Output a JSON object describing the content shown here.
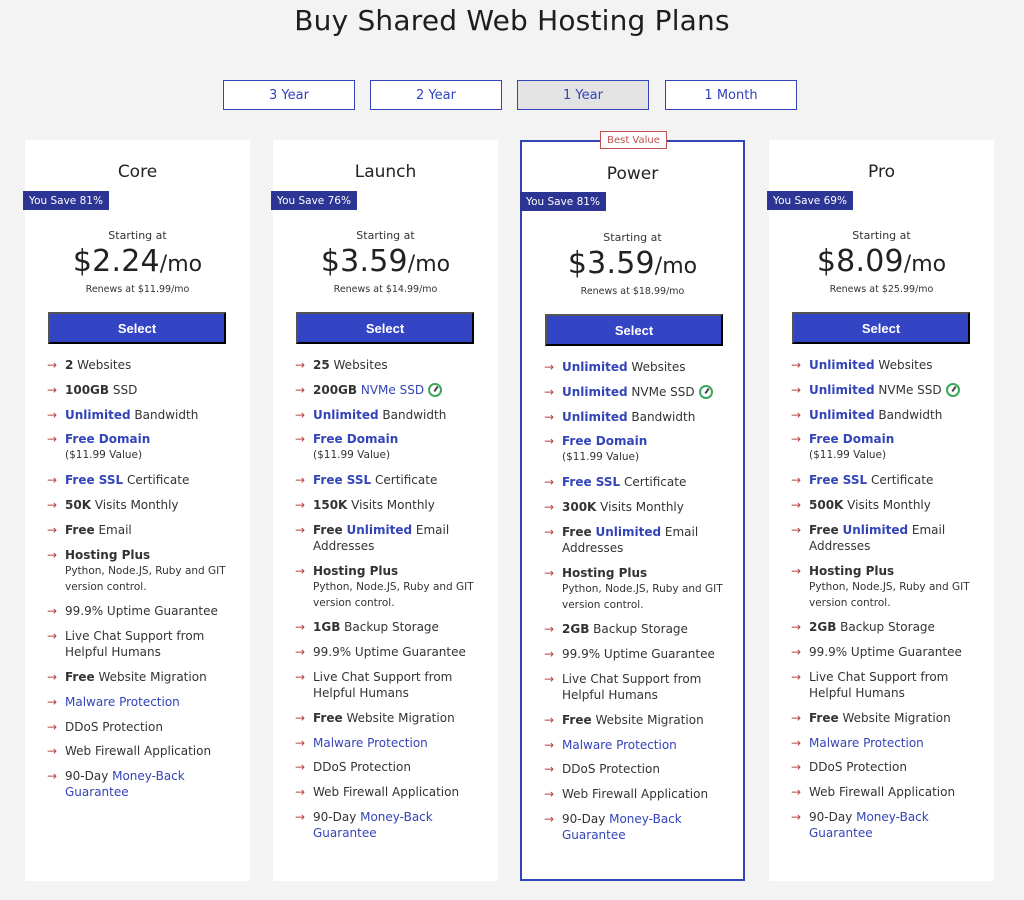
{
  "page": {
    "title": "Buy Shared Web Hosting Plans"
  },
  "terms": [
    "3 Year",
    "2 Year",
    "1 Year",
    "1 Month"
  ],
  "best_value_label": "Best Value",
  "plans": [
    {
      "name": "Core",
      "save": "You Save 81%",
      "starting": "Starting at",
      "price": "$2.24",
      "per": "/mo",
      "renews": "Renews at $11.99/mo",
      "select": "Select",
      "f": {
        "websites_b": "2",
        "websites_t": " Websites",
        "storage_b": "100GB",
        "storage_t": " SSD",
        "bandwidth_b": "Unlimited",
        "bandwidth_t": " Bandwidth",
        "domain_b": "Free Domain",
        "domain_s": "($11.99 Value)",
        "ssl_b": "Free SSL",
        "ssl_t": " Certificate",
        "visits_b": "50K",
        "visits_t": " Visits Monthly",
        "email_b": "Free",
        "email_t": " Email",
        "hosting_b": "Hosting Plus",
        "hosting_s": "Python, Node.JS, Ruby and GIT version control.",
        "uptime": "99.9% Uptime Guarantee",
        "chat": "Live Chat Support from Helpful Humans",
        "migration_b": "Free",
        "migration_t": " Website Migration",
        "malware": "Malware Protection",
        "ddos": "DDoS Protection",
        "firewall": "Web Firewall Application",
        "money_t": "90-Day ",
        "money_l": "Money-Back Guarantee"
      }
    },
    {
      "name": "Launch",
      "save": "You Save 76%",
      "starting": "Starting at",
      "price": "$3.59",
      "per": "/mo",
      "renews": "Renews at $14.99/mo",
      "select": "Select",
      "f": {
        "websites_b": "25",
        "websites_t": " Websites",
        "storage_b": "200GB",
        "storage_t": " NVMe SSD",
        "bandwidth_b": "Unlimited",
        "bandwidth_t": " Bandwidth",
        "domain_b": "Free Domain",
        "domain_s": "($11.99 Value)",
        "ssl_b": "Free SSL",
        "ssl_t": " Certificate",
        "visits_b": "150K",
        "visits_t": " Visits Monthly",
        "email_b": "Free",
        "email_u": "Unlimited",
        "email_t": " Email Addresses",
        "hosting_b": "Hosting Plus",
        "hosting_s": "Python, Node.JS, Ruby and GIT version control.",
        "backup_b": "1GB",
        "backup_t": " Backup Storage",
        "uptime": "99.9% Uptime Guarantee",
        "chat": "Live Chat Support from Helpful Humans",
        "migration_b": "Free",
        "migration_t": " Website Migration",
        "malware": "Malware Protection",
        "ddos": "DDoS Protection",
        "firewall": "Web Firewall Application",
        "money_t": "90-Day ",
        "money_l": "Money-Back Guarantee"
      }
    },
    {
      "name": "Power",
      "save": "You Save 81%",
      "starting": "Starting at",
      "price": "$3.59",
      "per": "/mo",
      "renews": "Renews at $18.99/mo",
      "select": "Select",
      "f": {
        "websites_b": "Unlimited",
        "websites_t": " Websites",
        "storage_b": "Unlimited",
        "storage_t": " NVMe SSD",
        "bandwidth_b": "Unlimited",
        "bandwidth_t": " Bandwidth",
        "domain_b": "Free Domain",
        "domain_s": "($11.99 Value)",
        "ssl_b": "Free SSL",
        "ssl_t": " Certificate",
        "visits_b": "300K",
        "visits_t": " Visits Monthly",
        "email_b": "Free",
        "email_u": "Unlimited",
        "email_t": " Email Addresses",
        "hosting_b": "Hosting Plus",
        "hosting_s": "Python, Node.JS, Ruby and GIT version control.",
        "backup_b": "2GB",
        "backup_t": " Backup Storage",
        "uptime": "99.9% Uptime Guarantee",
        "chat": "Live Chat Support from Helpful Humans",
        "migration_b": "Free",
        "migration_t": " Website Migration",
        "malware": "Malware Protection",
        "ddos": "DDoS Protection",
        "firewall": "Web Firewall Application",
        "money_t": "90-Day ",
        "money_l": "Money-Back Guarantee"
      }
    },
    {
      "name": "Pro",
      "save": "You Save 69%",
      "starting": "Starting at",
      "price": "$8.09",
      "per": "/mo",
      "renews": "Renews at $25.99/mo",
      "select": "Select",
      "f": {
        "websites_b": "Unlimited",
        "websites_t": " Websites",
        "storage_b": "Unlimited",
        "storage_t": " NVMe SSD",
        "bandwidth_b": "Unlimited",
        "bandwidth_t": " Bandwidth",
        "domain_b": "Free Domain",
        "domain_s": "($11.99 Value)",
        "ssl_b": "Free SSL",
        "ssl_t": " Certificate",
        "visits_b": "500K",
        "visits_t": " Visits Monthly",
        "email_b": "Free",
        "email_u": "Unlimited",
        "email_t": " Email Addresses",
        "hosting_b": "Hosting Plus",
        "hosting_s": "Python, Node.JS, Ruby and GIT version control.",
        "backup_b": "2GB",
        "backup_t": " Backup Storage",
        "uptime": "99.9% Uptime Guarantee",
        "chat": "Live Chat Support from Helpful Humans",
        "migration_b": "Free",
        "migration_t": " Website Migration",
        "malware": "Malware Protection",
        "ddos": "DDoS Protection",
        "firewall": "Web Firewall Application",
        "money_t": "90-Day ",
        "money_l": "Money-Back Guarantee"
      }
    }
  ],
  "colors": {
    "accent": "#3344c4",
    "badge": "#2c3593",
    "arrow": "#b44444",
    "best_value": "#c0504d"
  },
  "icons": {
    "feature_bullet": "arrow-right-icon",
    "speed": "speed-gauge-icon"
  }
}
